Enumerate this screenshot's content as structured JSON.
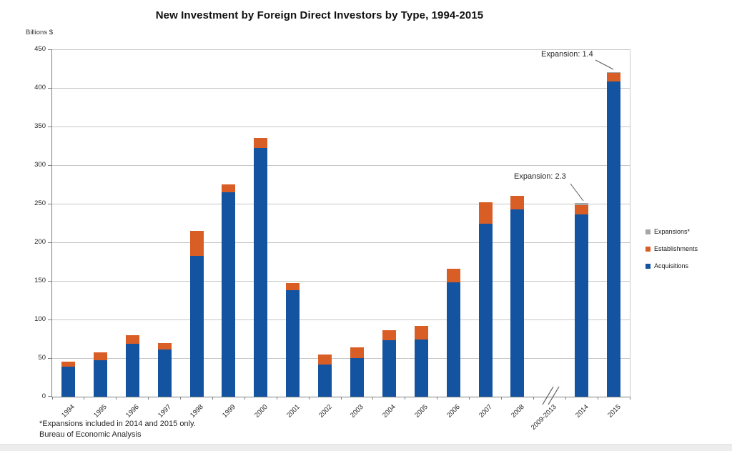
{
  "chart_data": {
    "type": "bar",
    "stacked": true,
    "title": "New Investment by Foreign Direct Investors by Type, 1994-2015",
    "y_axis_label": "Billions $",
    "ylim": [
      0,
      450
    ],
    "yticks": [
      0,
      50,
      100,
      150,
      200,
      250,
      300,
      350,
      400,
      450
    ],
    "grid": "horizontal",
    "categories": [
      "1994",
      "1995",
      "1996",
      "1997",
      "1998",
      "1999",
      "2000",
      "2001",
      "2002",
      "2003",
      "2004",
      "2005",
      "2006",
      "2007",
      "2008",
      "2009-2013",
      "2014",
      "2015"
    ],
    "axis_break_category": "2009-2013",
    "series": [
      {
        "name": "Acquisitions",
        "color": "#1353a0",
        "values": [
          38.8,
          47.5,
          68.7,
          60.7,
          182.4,
          265.1,
          322.7,
          138.1,
          41.6,
          50.0,
          73.4,
          74.3,
          148.0,
          224.0,
          242.2,
          null,
          236.3,
          408.1
        ]
      },
      {
        "name": "Establishments",
        "color": "#d95e26",
        "values": [
          6.9,
          9.7,
          11.2,
          9.0,
          32.9,
          9.8,
          12.9,
          9.0,
          12.9,
          13.6,
          12.9,
          17.1,
          17.5,
          28.0,
          18.2,
          null,
          11.9,
          11.2
        ]
      },
      {
        "name": "Expansions*",
        "color": "#a6a6a6",
        "values": [
          0,
          0,
          0,
          0,
          0,
          0,
          0,
          0,
          0,
          0,
          0,
          0,
          0,
          0,
          0,
          null,
          2.3,
          1.4
        ]
      }
    ],
    "legend": {
      "position": "right",
      "items": [
        "Expansions*",
        "Establishments",
        "Acquisitions"
      ]
    },
    "annotations": [
      {
        "text": "Expansion: 2.3",
        "target_category": "2014",
        "target_value": 250.5
      },
      {
        "text": "Expansion: 1.4",
        "target_category": "2015",
        "target_value": 420.7
      }
    ],
    "footnotes": [
      "*Expansions included in 2014 and 2015  only.",
      "Bureau of Economic Analysis"
    ]
  }
}
